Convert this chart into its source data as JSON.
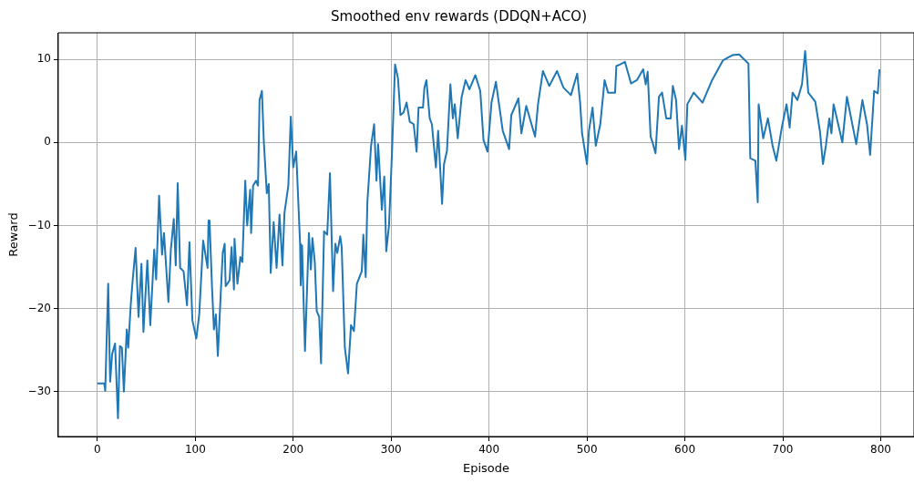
{
  "chart_data": {
    "type": "line",
    "title": "Smoothed env rewards (DDQN+ACO)",
    "xlabel": "Episode",
    "ylabel": "Reward",
    "xlim": [
      -40,
      834
    ],
    "ylim": [
      -35.4,
      13.2
    ],
    "xticks": [
      0,
      100,
      200,
      300,
      400,
      500,
      600,
      700,
      800
    ],
    "yticks": [
      -30,
      -20,
      -10,
      0,
      10
    ],
    "grid": true,
    "legend": false,
    "marker": "none",
    "line_style": "solid",
    "series": [
      {
        "color": "#1f77b4",
        "x": [
          0,
          7,
          8,
          11,
          13,
          15,
          18,
          21,
          23,
          25,
          27,
          30,
          31.5,
          34,
          36,
          39,
          42,
          45,
          47,
          51,
          54,
          58,
          60,
          63,
          66,
          68,
          72.5,
          75,
          78,
          80,
          82,
          84.5,
          88,
          91.5,
          94,
          97,
          101,
          104,
          108,
          112.5,
          113.5,
          114.5,
          117,
          119,
          121,
          123,
          126,
          128,
          130,
          131,
          135,
          137,
          139.5,
          140,
          143,
          146,
          148,
          151,
          153,
          156,
          157,
          159,
          162,
          164,
          165.6,
          168,
          170,
          173,
          175,
          177,
          180,
          183,
          186,
          189,
          191,
          195,
          197.5,
          200,
          203,
          207,
          207.6,
          209,
          212,
          216,
          218,
          219.6,
          222,
          224,
          226.5,
          228.4,
          231.5,
          234.7,
          237.5,
          240.7,
          243,
          245,
          248,
          249.5,
          252.7,
          256,
          259,
          262,
          265,
          270,
          271.6,
          274,
          275.7,
          279.5,
          282.6,
          285,
          286.7,
          290.5,
          293,
          295,
          297.8,
          301,
          304,
          307,
          309.5,
          312.6,
          315.8,
          319,
          323,
          326,
          328,
          332.5,
          334,
          336,
          339.4,
          341.6,
          345.7,
          348,
          352,
          354,
          357,
          360.5,
          363,
          365,
          368,
          372,
          376,
          380,
          386,
          391,
          394.3,
          398.4,
          402.5,
          407,
          414,
          420.5,
          422.7,
          430,
          433,
          438,
          447,
          450,
          455,
          461.5,
          469.4,
          476,
          483.6,
          490,
          493,
          495,
          500,
          502,
          505.7,
          509,
          513.6,
          518,
          521.5,
          528.7,
          530,
          534,
          538.8,
          545,
          551,
          557.4,
          560,
          562,
          565,
          567,
          570,
          573.5,
          576.7,
          581,
          585.5,
          587.7,
          591,
          594,
          597,
          600.5,
          602.5,
          609,
          618,
          627.8,
          639,
          648.4,
          655.4,
          664.9,
          666.8,
          672,
          674.4,
          675.3,
          680,
          684.8,
          689.6,
          693.4,
          699,
          703.8,
          707,
          710,
          714.9,
          719.6,
          722.8,
          726,
          733.2,
          738,
          741,
          744,
          747.5,
          749.7,
          751.9,
          760.8,
          765.5,
          775,
          781.3,
          786,
          789.2,
          793.3,
          797,
          798.7
        ],
        "values": [
          -29,
          -29,
          -29.9,
          -17,
          -28.8,
          -25.5,
          -24.2,
          -33.2,
          -24.5,
          -24.7,
          -30,
          -22.5,
          -24.7,
          -19.6,
          -16.6,
          -12.7,
          -21,
          -14.6,
          -22.8,
          -14.2,
          -22,
          -12.9,
          -16.5,
          -6.4,
          -13.5,
          -10.9,
          -19.2,
          -12.9,
          -9.2,
          -14.8,
          -4.9,
          -15.1,
          -15.5,
          -19.6,
          -12,
          -21.4,
          -23.6,
          -20.7,
          -11.8,
          -15.1,
          -9.4,
          -9.4,
          -17.3,
          -22.5,
          -20.7,
          -25.7,
          -18.1,
          -13.3,
          -12.2,
          -17.3,
          -16.6,
          -12.6,
          -17.7,
          -11.6,
          -17,
          -13.8,
          -14.4,
          -4.6,
          -10,
          -5.7,
          -10.9,
          -5.2,
          -4.6,
          -5.2,
          5.1,
          6.2,
          0,
          -6.1,
          -5,
          -15.7,
          -9.6,
          -15.1,
          -8.7,
          -14.8,
          -8.5,
          -5.2,
          3.1,
          -3,
          -1.1,
          -12.2,
          -17.2,
          -12.4,
          -25.1,
          -10.9,
          -15.3,
          -11.5,
          -14.4,
          -20.3,
          -21,
          -26.6,
          -10.7,
          -11.1,
          -3.7,
          -17.9,
          -12.2,
          -13.3,
          -11.3,
          -12.6,
          -24.7,
          -27.8,
          -22,
          -22.7,
          -17,
          -15.5,
          -11.1,
          -16.2,
          -7.2,
          -0.4,
          2.2,
          -4.6,
          -0.2,
          -8.1,
          -4.1,
          -13.1,
          -10,
          -0.8,
          9.4,
          7.7,
          3.3,
          3.6,
          4.8,
          2.5,
          2.2,
          -1.1,
          4.2,
          4.2,
          6.6,
          7.5,
          2.9,
          2.2,
          -3,
          1.4,
          -7.4,
          -2.6,
          -1,
          7,
          2.9,
          4.6,
          0.5,
          5.5,
          7.5,
          6.4,
          8.1,
          6.2,
          0.3,
          -1.1,
          4.8,
          7.3,
          1.4,
          -0.8,
          3.3,
          5.3,
          1.1,
          4.4,
          0.7,
          4.6,
          8.6,
          6.8,
          8.6,
          6.6,
          5.7,
          8.3,
          4.8,
          1.1,
          -2.6,
          1.4,
          4.2,
          -0.4,
          2.2,
          7.5,
          6,
          6,
          9.2,
          9.4,
          9.7,
          7.1,
          7.5,
          8.8,
          7,
          8.5,
          0.7,
          0,
          -1.3,
          5.5,
          6,
          2.9,
          2.9,
          6.8,
          5.1,
          -0.8,
          2,
          -2.1,
          4.6,
          6,
          4.8,
          7.5,
          9.9,
          10.5,
          10.6,
          9.5,
          -1.9,
          -2.2,
          -7.2,
          4.6,
          0.5,
          2.9,
          -0.4,
          -2.2,
          1.8,
          4.6,
          1.8,
          6,
          5.1,
          7,
          11,
          6,
          4.9,
          1.3,
          -2.6,
          -0.4,
          2.9,
          1.1,
          4.6,
          0,
          5.5,
          -0.2,
          5.1,
          2.2,
          -1.5,
          6.2,
          5.9,
          8.8
        ]
      }
    ]
  }
}
